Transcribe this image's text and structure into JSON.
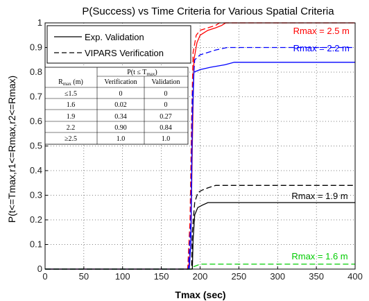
{
  "chart_data": {
    "type": "line",
    "title": "P(Success) vs Time Criteria for Various Spatial Criteria",
    "xlabel": "Tmax (sec)",
    "ylabel": "P(t<=Tmax,r1<=Rmax,r2<=Rmax)",
    "xlim": [
      0,
      400
    ],
    "ylim": [
      0,
      1
    ],
    "xticks": [
      "0",
      "50",
      "100",
      "150",
      "200",
      "250",
      "300",
      "350",
      "400"
    ],
    "yticks": [
      "0",
      "0.1",
      "0.2",
      "0.3",
      "0.4",
      "0.5",
      "0.6",
      "0.7",
      "0.8",
      "0.9",
      "1"
    ],
    "grid": true,
    "legend": {
      "placement": "top-left",
      "entries": [
        {
          "label": "Exp. Validation",
          "style": "solid"
        },
        {
          "label": "VIPARS Verification",
          "style": "dashed"
        }
      ]
    },
    "annotations": [
      {
        "text": "Rmax = 2.5 m",
        "color": "#ff0000",
        "x": 320,
        "y": 0.955
      },
      {
        "text": "Rmax = 2.2 m",
        "color": "#0000ff",
        "x": 320,
        "y": 0.885
      },
      {
        "text": "Rmax = 1.9 m",
        "color": "#000000",
        "x": 318,
        "y": 0.285
      },
      {
        "text": "Rmax = 1.6 m",
        "color": "#00cc00",
        "x": 318,
        "y": 0.04
      }
    ],
    "series": [
      {
        "color": "#ff0000",
        "style": "solid",
        "points": [
          [
            0,
            0
          ],
          [
            185,
            0
          ],
          [
            188,
            0.1
          ],
          [
            190,
            0.5
          ],
          [
            192,
            0.85
          ],
          [
            196,
            0.92
          ],
          [
            200,
            0.95
          ],
          [
            205,
            0.96
          ],
          [
            210,
            0.97
          ],
          [
            220,
            0.98
          ],
          [
            228,
            0.99
          ],
          [
            233,
            1
          ],
          [
            400,
            1
          ]
        ]
      },
      {
        "color": "#ff0000",
        "style": "dashed",
        "points": [
          [
            0,
            0
          ],
          [
            184,
            0
          ],
          [
            187,
            0.2
          ],
          [
            189,
            0.6
          ],
          [
            191,
            0.88
          ],
          [
            195,
            0.95
          ],
          [
            200,
            0.97
          ],
          [
            210,
            0.98
          ],
          [
            220,
            0.99
          ],
          [
            225,
            1
          ],
          [
            400,
            1
          ]
        ]
      },
      {
        "color": "#0000ff",
        "style": "solid",
        "points": [
          [
            0,
            0
          ],
          [
            186,
            0
          ],
          [
            188,
            0.1
          ],
          [
            190,
            0.6
          ],
          [
            192,
            0.8
          ],
          [
            200,
            0.81
          ],
          [
            214,
            0.82
          ],
          [
            232,
            0.83
          ],
          [
            244,
            0.84
          ],
          [
            400,
            0.84
          ]
        ]
      },
      {
        "color": "#0000ff",
        "style": "dashed",
        "points": [
          [
            0,
            0
          ],
          [
            185,
            0
          ],
          [
            188,
            0.2
          ],
          [
            190,
            0.7
          ],
          [
            193,
            0.85
          ],
          [
            200,
            0.87
          ],
          [
            210,
            0.88
          ],
          [
            220,
            0.89
          ],
          [
            235,
            0.9
          ],
          [
            400,
            0.9
          ]
        ]
      },
      {
        "color": "#000000",
        "style": "solid",
        "points": [
          [
            0,
            0
          ],
          [
            190,
            0
          ],
          [
            191,
            0.12
          ],
          [
            193,
            0.22
          ],
          [
            197,
            0.25
          ],
          [
            203,
            0.26
          ],
          [
            210,
            0.27
          ],
          [
            400,
            0.27
          ]
        ]
      },
      {
        "color": "#000000",
        "style": "dashed",
        "points": [
          [
            0,
            0
          ],
          [
            189,
            0
          ],
          [
            190,
            0.15
          ],
          [
            193,
            0.27
          ],
          [
            197,
            0.31
          ],
          [
            202,
            0.32
          ],
          [
            210,
            0.33
          ],
          [
            220,
            0.34
          ],
          [
            400,
            0.34
          ]
        ]
      },
      {
        "color": "#00cc00",
        "style": "dashed",
        "points": [
          [
            0,
            0
          ],
          [
            190,
            0
          ],
          [
            192,
            0.01
          ],
          [
            200,
            0.02
          ],
          [
            400,
            0.02
          ]
        ]
      }
    ],
    "table": {
      "header_top": "P(t ≤ T",
      "header_top_sub": "max",
      "header_top_end": ")",
      "rmax_label": "R",
      "rmax_sub": "max",
      "rmax_unit": " (m)",
      "col_headers": [
        "Verification",
        "Validation"
      ],
      "rows": [
        [
          "≤1.5",
          "0",
          "0"
        ],
        [
          "1.6",
          "0.02",
          "0"
        ],
        [
          "1.9",
          "0.34",
          "0.27"
        ],
        [
          "2.2",
          "0.90",
          "0.84"
        ],
        [
          "≥2.5",
          "1.0",
          "1.0"
        ]
      ]
    }
  }
}
